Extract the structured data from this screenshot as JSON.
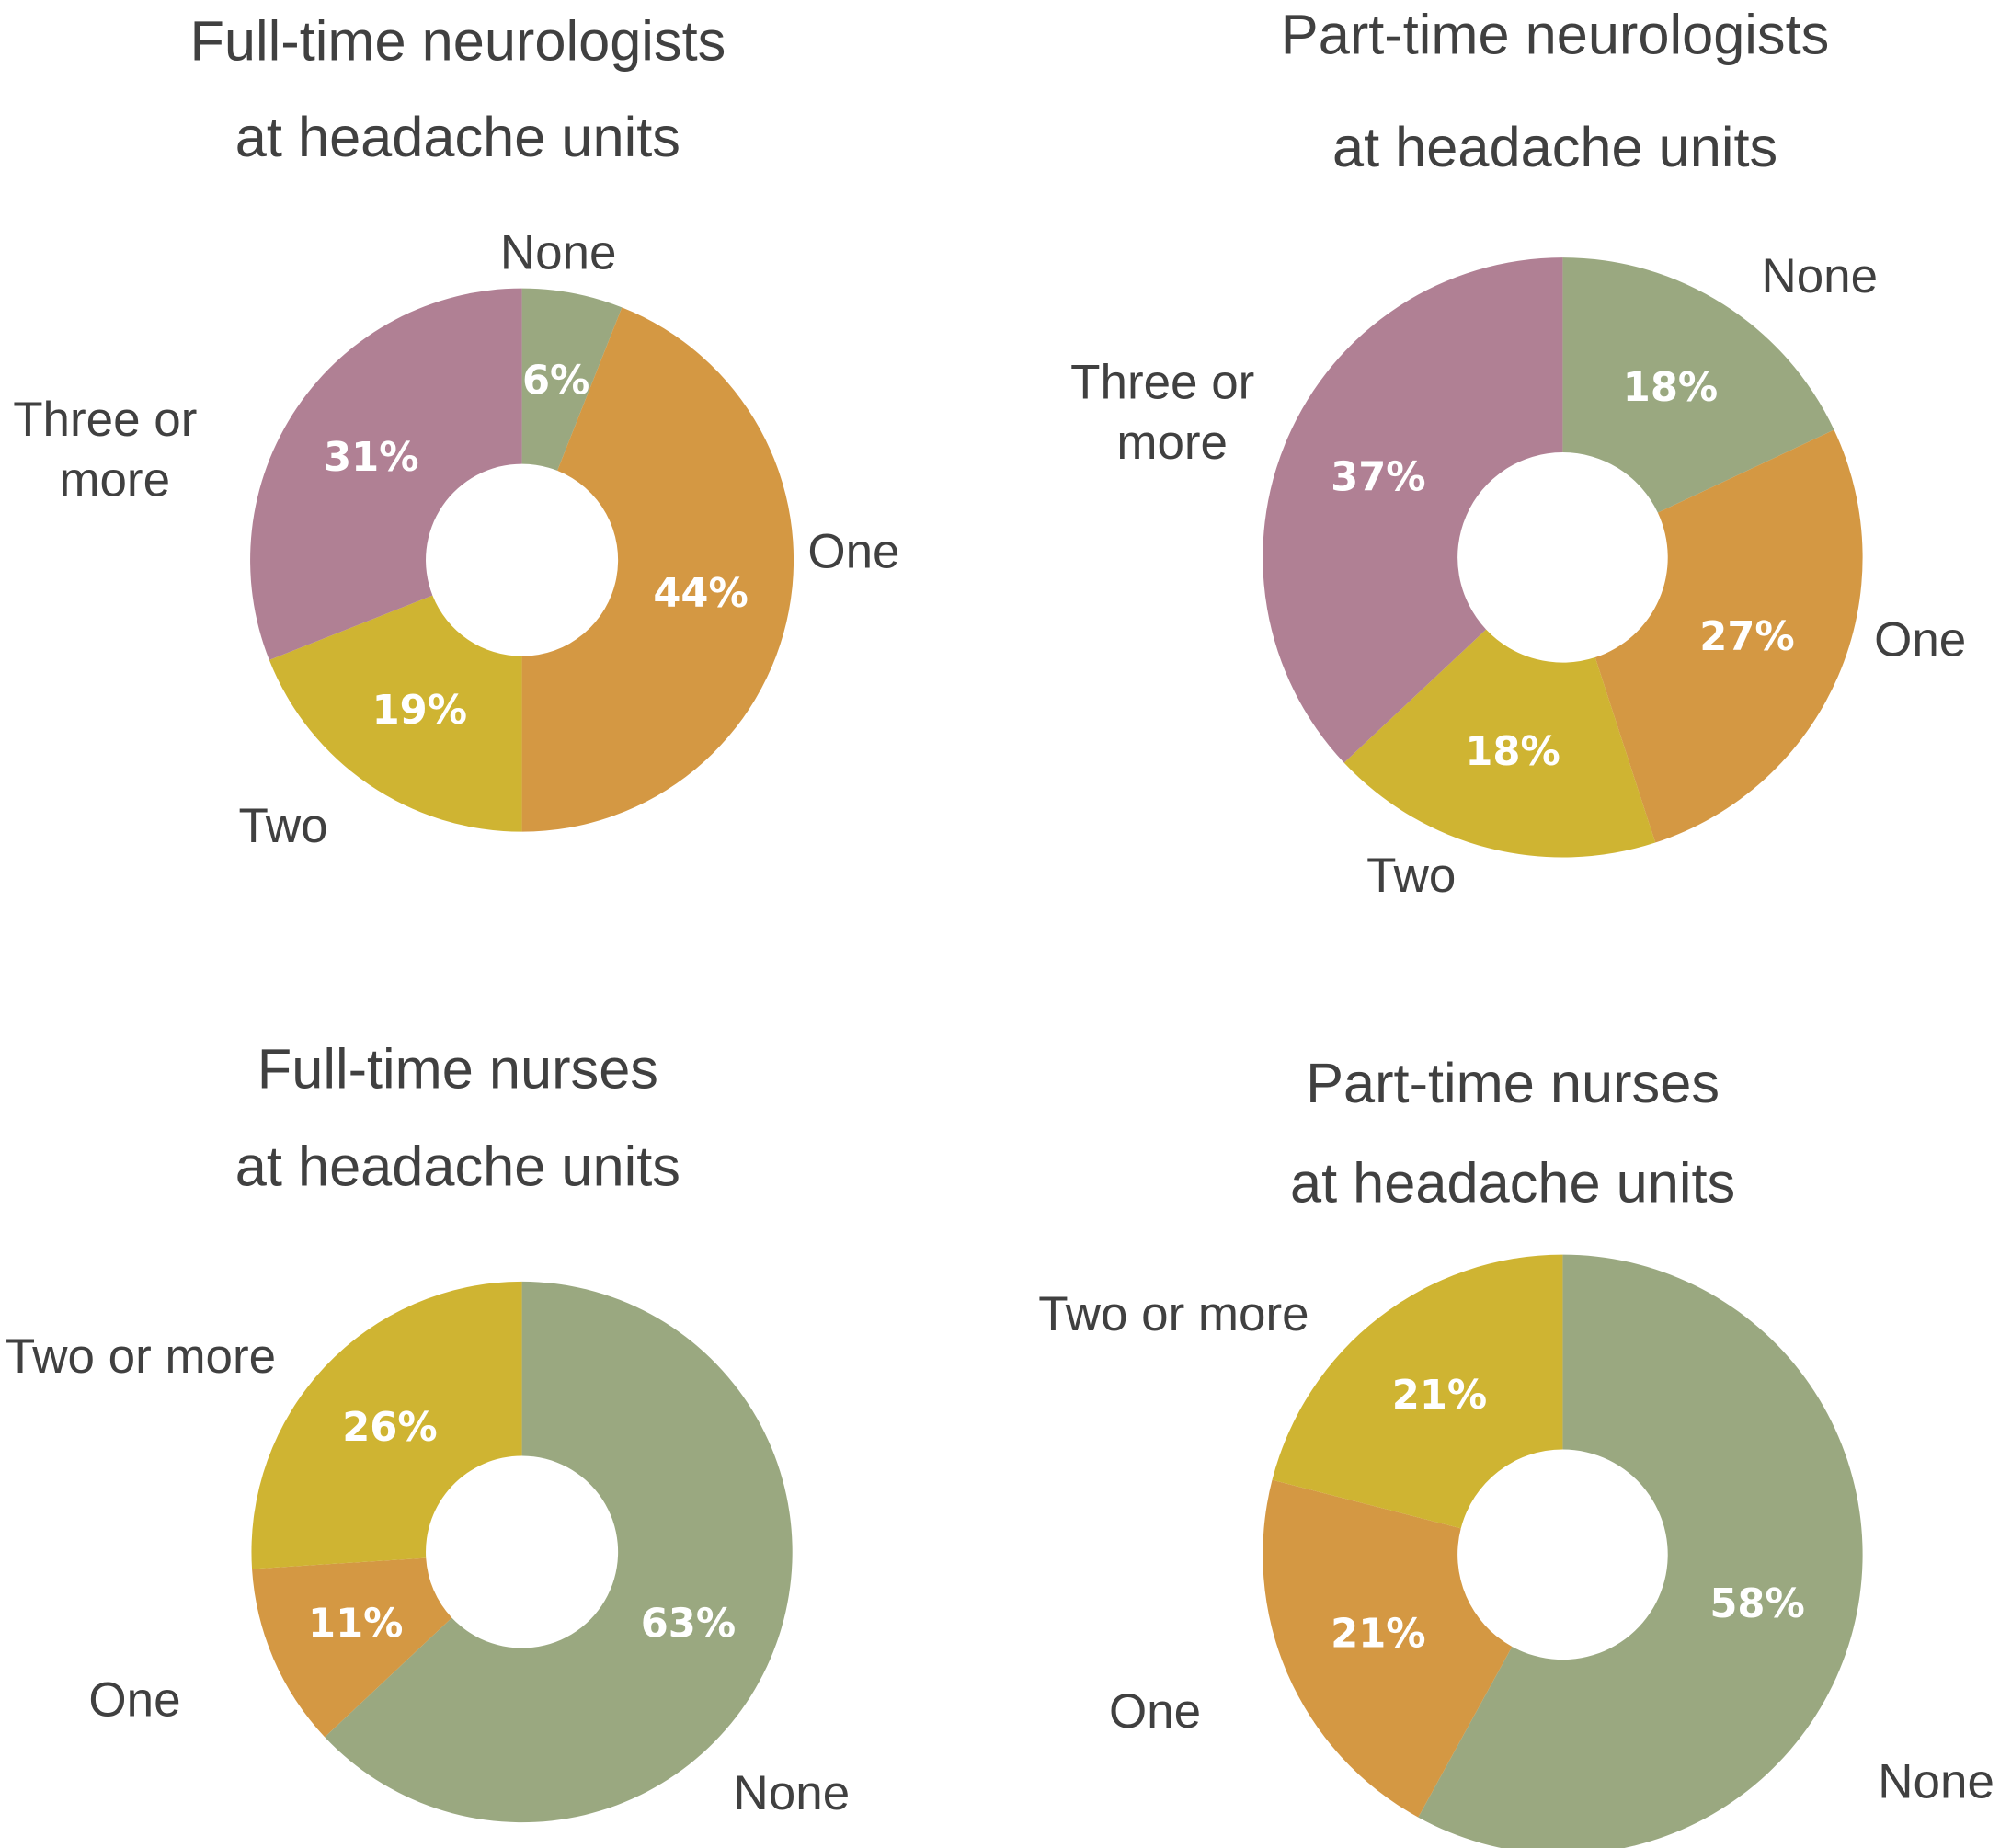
{
  "colors": {
    "None": "#9aa880",
    "One": "#d49843",
    "Two": "#cfb432",
    "Three or more": "#b08094",
    "Two or more": "#cfb432"
  },
  "chart_data": [
    {
      "type": "pie",
      "donut": true,
      "title": [
        "Full-time neurologists",
        "at headache units"
      ],
      "categories": [
        "None",
        "One",
        "Two",
        "Three or more"
      ],
      "labels": [
        [
          "None"
        ],
        [
          "One"
        ],
        [
          "Two"
        ],
        [
          "Three or",
          "more"
        ]
      ],
      "values": [
        6,
        44,
        19,
        31
      ],
      "value_labels": [
        "6%",
        "44%",
        "19%",
        "31%"
      ]
    },
    {
      "type": "pie",
      "donut": true,
      "title": [
        "Part-time neurologists",
        "at headache units"
      ],
      "categories": [
        "None",
        "One",
        "Two",
        "Three or more"
      ],
      "labels": [
        [
          "None"
        ],
        [
          "One"
        ],
        [
          "Two"
        ],
        [
          "Three or",
          "more"
        ]
      ],
      "values": [
        18,
        27,
        18,
        37
      ],
      "value_labels": [
        "18%",
        "27%",
        "18%",
        "37%"
      ]
    },
    {
      "type": "pie",
      "donut": true,
      "title": [
        "Full-time nurses",
        "at headache units"
      ],
      "categories": [
        "None",
        "One",
        "Two or more"
      ],
      "labels": [
        [
          "None"
        ],
        [
          "One"
        ],
        [
          "Two or more"
        ]
      ],
      "values": [
        63,
        11,
        26
      ],
      "value_labels": [
        "63%",
        "11%",
        "26%"
      ]
    },
    {
      "type": "pie",
      "donut": true,
      "title": [
        "Part-time nurses",
        "at headache units"
      ],
      "categories": [
        "None",
        "One",
        "Two or more"
      ],
      "labels": [
        [
          "None"
        ],
        [
          "One"
        ],
        [
          "Two or more"
        ]
      ],
      "values": [
        58,
        21,
        21
      ],
      "value_labels": [
        "58%",
        "21%",
        "21%"
      ]
    }
  ]
}
